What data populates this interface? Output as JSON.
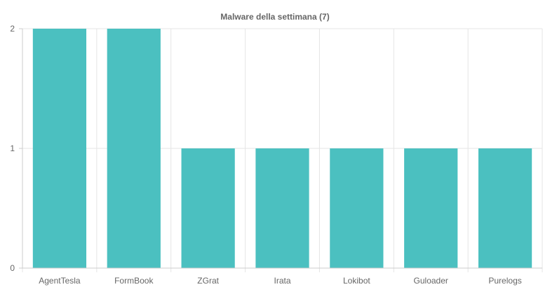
{
  "chart_data": {
    "type": "bar",
    "title": "Malware della settimana (7)",
    "categories": [
      "AgentTesla",
      "FormBook",
      "ZGrat",
      "Irata",
      "Lokibot",
      "Guloader",
      "Purelogs"
    ],
    "values": [
      2,
      2,
      1,
      1,
      1,
      1,
      1
    ],
    "ylim": [
      0,
      2
    ],
    "yticks": [
      0,
      1,
      2
    ],
    "xlabel": "",
    "ylabel": "",
    "grid": true,
    "legend": "none",
    "colors": {
      "bar_fill": "#4bc0c0",
      "grid": "#e5e5e5",
      "axis": "#cccccc",
      "text": "#666666"
    }
  }
}
